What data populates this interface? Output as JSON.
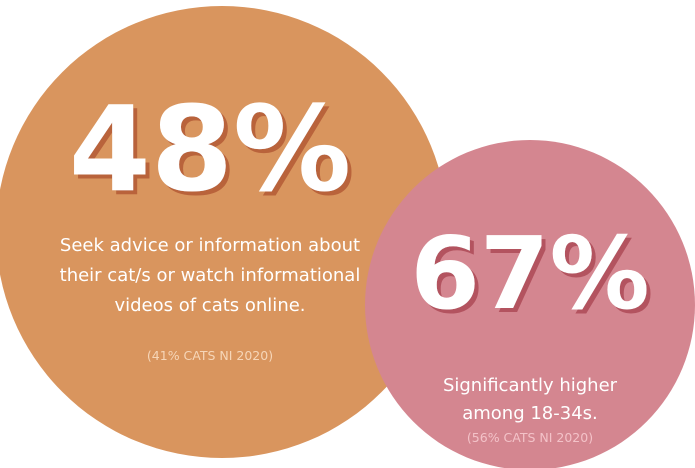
{
  "stats": [
    {
      "value": "48%",
      "description": [
        "Seek advice or information about",
        "their cat/s or watch informational",
        "videos of cats online."
      ],
      "note": "(41% CATS NI 2020)"
    },
    {
      "value": "67%",
      "description": [
        "Significantly higher",
        "among 18-34s."
      ],
      "note": "(56% CATS NI 2020)"
    }
  ]
}
